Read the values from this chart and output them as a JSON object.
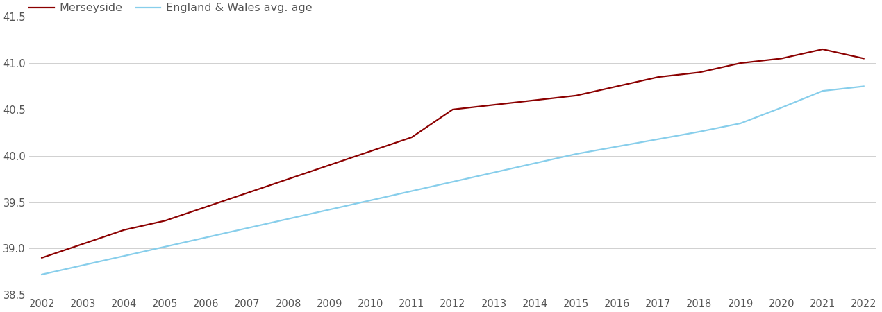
{
  "years": [
    2002,
    2003,
    2004,
    2005,
    2006,
    2007,
    2008,
    2009,
    2010,
    2011,
    2012,
    2013,
    2014,
    2015,
    2016,
    2017,
    2018,
    2019,
    2020,
    2021,
    2022
  ],
  "merseyside": [
    38.9,
    39.05,
    39.2,
    39.3,
    39.45,
    39.6,
    39.75,
    39.9,
    40.05,
    40.2,
    40.5,
    40.55,
    40.6,
    40.65,
    40.75,
    40.85,
    40.9,
    41.0,
    41.05,
    41.15,
    41.05
  ],
  "england_wales": [
    38.72,
    38.82,
    38.92,
    39.02,
    39.12,
    39.22,
    39.32,
    39.42,
    39.52,
    39.62,
    39.72,
    39.82,
    39.92,
    40.02,
    40.1,
    40.18,
    40.26,
    40.35,
    40.52,
    40.7,
    40.75
  ],
  "merseyside_color": "#8B0000",
  "england_wales_color": "#87CEEB",
  "merseyside_label": "Merseyside",
  "england_wales_label": "England & Wales avg. age",
  "ylim": [
    38.5,
    41.65
  ],
  "yticks": [
    38.5,
    39.0,
    39.5,
    40.0,
    40.5,
    41.0,
    41.5
  ],
  "line_width": 1.6,
  "background_color": "#ffffff",
  "grid_color": "#d0d0d0",
  "tick_label_color": "#555555",
  "legend_fontsize": 11.5,
  "tick_fontsize": 10.5
}
